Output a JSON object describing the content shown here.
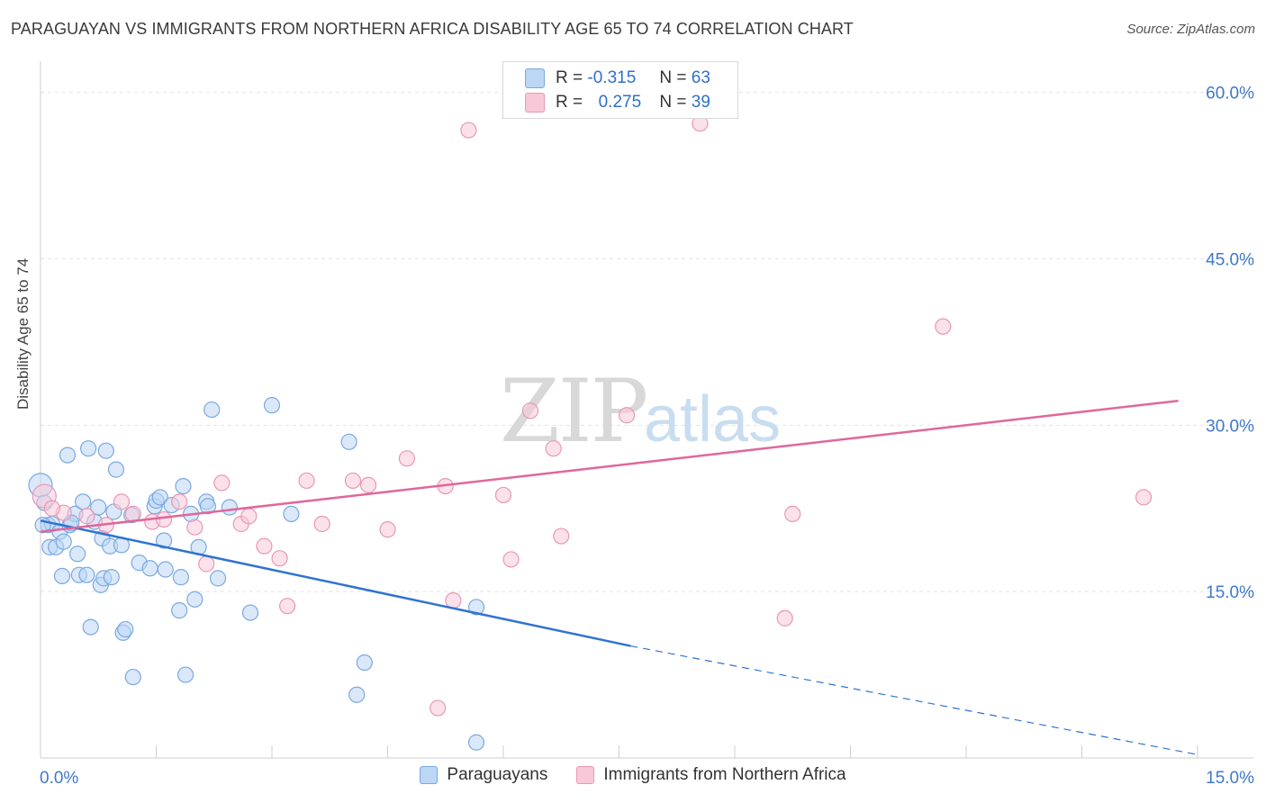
{
  "title": "PARAGUAYAN VS IMMIGRANTS FROM NORTHERN AFRICA DISABILITY AGE 65 TO 74 CORRELATION CHART",
  "source": "Source: ZipAtlas.com",
  "watermark": {
    "zip": "ZIP",
    "atlas": "atlas"
  },
  "legend_top": {
    "r_label": "R =",
    "n_label": "N =",
    "series": [
      {
        "r": "-0.315",
        "n": "63"
      },
      {
        "r": "0.275",
        "n": "39"
      }
    ]
  },
  "legend_bottom": [
    "Paraguayans",
    "Immigrants from Northern Africa"
  ],
  "colors": {
    "blue_line": "#2f73d1",
    "pink_line": "#e0679a",
    "blue_fill": "#bcd6f5",
    "pink_fill": "#f8c8d8",
    "tick_text": "#3f78cc"
  },
  "chart_data": {
    "type": "scatter",
    "xlabel": "",
    "ylabel": "Disability Age 65 to 74",
    "xlim": [
      0,
      15
    ],
    "ylim": [
      0,
      62
    ],
    "x_tick_labels": [
      {
        "value": 0,
        "label": "0.0%"
      },
      {
        "value": 15,
        "label": "15.0%"
      }
    ],
    "y_tick_labels": [
      {
        "value": 15,
        "label": "15.0%"
      },
      {
        "value": 30,
        "label": "30.0%"
      },
      {
        "value": 45,
        "label": "45.0%"
      },
      {
        "value": 60,
        "label": "60.0%"
      }
    ],
    "series": [
      {
        "name": "Paraguayans",
        "color": "#2f73d1",
        "trend": {
          "x0": 0,
          "y0": 21.4,
          "x1": 7.65,
          "y1": 10.1,
          "dash_to_x": 15,
          "dash_to_y": 0.3
        },
        "points": [
          [
            0.0,
            24.6
          ],
          [
            0.05,
            23.0
          ],
          [
            0.1,
            21.0
          ],
          [
            0.12,
            19.0
          ],
          [
            0.15,
            21.1
          ],
          [
            0.2,
            19.0
          ],
          [
            0.25,
            20.4
          ],
          [
            0.28,
            16.4
          ],
          [
            0.3,
            19.5
          ],
          [
            0.35,
            27.3
          ],
          [
            0.38,
            21.0
          ],
          [
            0.45,
            22.0
          ],
          [
            0.48,
            18.4
          ],
          [
            0.5,
            16.5
          ],
          [
            0.55,
            23.1
          ],
          [
            0.6,
            16.5
          ],
          [
            0.62,
            27.9
          ],
          [
            0.65,
            11.8
          ],
          [
            0.7,
            21.3
          ],
          [
            0.75,
            22.6
          ],
          [
            0.78,
            15.6
          ],
          [
            0.8,
            19.8
          ],
          [
            0.82,
            16.2
          ],
          [
            0.85,
            27.7
          ],
          [
            0.9,
            19.1
          ],
          [
            0.92,
            16.3
          ],
          [
            0.95,
            22.2
          ],
          [
            0.98,
            26.0
          ],
          [
            1.05,
            19.2
          ],
          [
            1.07,
            11.3
          ],
          [
            1.1,
            11.6
          ],
          [
            1.18,
            21.9
          ],
          [
            1.2,
            7.3
          ],
          [
            1.28,
            17.6
          ],
          [
            1.42,
            17.1
          ],
          [
            1.48,
            22.7
          ],
          [
            1.5,
            23.2
          ],
          [
            1.55,
            23.5
          ],
          [
            1.6,
            19.6
          ],
          [
            1.62,
            17.0
          ],
          [
            1.7,
            22.8
          ],
          [
            1.8,
            13.3
          ],
          [
            1.82,
            16.3
          ],
          [
            1.85,
            24.5
          ],
          [
            1.88,
            7.5
          ],
          [
            1.95,
            22.0
          ],
          [
            2.0,
            14.3
          ],
          [
            2.05,
            19.0
          ],
          [
            2.15,
            23.1
          ],
          [
            2.17,
            22.7
          ],
          [
            2.22,
            31.4
          ],
          [
            2.3,
            16.2
          ],
          [
            2.45,
            22.6
          ],
          [
            2.72,
            13.1
          ],
          [
            3.0,
            31.8
          ],
          [
            3.25,
            22.0
          ],
          [
            4.0,
            28.5
          ],
          [
            4.1,
            5.7
          ],
          [
            4.2,
            8.6
          ],
          [
            5.65,
            13.6
          ],
          [
            5.65,
            1.4
          ],
          [
            0.03,
            21.0
          ],
          [
            0.4,
            21.2
          ]
        ]
      },
      {
        "name": "Immigrants from Northern Africa",
        "color": "#e0679a",
        "trend": {
          "x0": 0,
          "y0": 20.4,
          "x1": 14.75,
          "y1": 32.2
        },
        "points": [
          [
            0.05,
            23.6
          ],
          [
            0.3,
            22.1
          ],
          [
            0.6,
            21.8
          ],
          [
            0.85,
            21.0
          ],
          [
            1.05,
            23.1
          ],
          [
            1.2,
            22.0
          ],
          [
            1.45,
            21.3
          ],
          [
            1.6,
            21.5
          ],
          [
            1.8,
            23.1
          ],
          [
            2.0,
            20.8
          ],
          [
            2.15,
            17.5
          ],
          [
            2.35,
            24.8
          ],
          [
            2.6,
            21.1
          ],
          [
            2.7,
            21.8
          ],
          [
            2.9,
            19.1
          ],
          [
            3.1,
            18.0
          ],
          [
            3.2,
            13.7
          ],
          [
            3.45,
            25.0
          ],
          [
            3.65,
            21.1
          ],
          [
            4.05,
            25.0
          ],
          [
            4.25,
            24.6
          ],
          [
            4.5,
            20.6
          ],
          [
            4.75,
            27.0
          ],
          [
            5.15,
            4.5
          ],
          [
            5.25,
            24.5
          ],
          [
            5.35,
            14.2
          ],
          [
            5.55,
            56.6
          ],
          [
            6.0,
            23.7
          ],
          [
            6.1,
            17.9
          ],
          [
            6.35,
            31.3
          ],
          [
            6.65,
            27.9
          ],
          [
            6.75,
            20.0
          ],
          [
            7.6,
            30.9
          ],
          [
            8.55,
            57.2
          ],
          [
            9.65,
            12.6
          ],
          [
            9.75,
            22.0
          ],
          [
            11.7,
            38.9
          ],
          [
            14.3,
            23.5
          ],
          [
            0.15,
            22.5
          ]
        ]
      }
    ]
  }
}
